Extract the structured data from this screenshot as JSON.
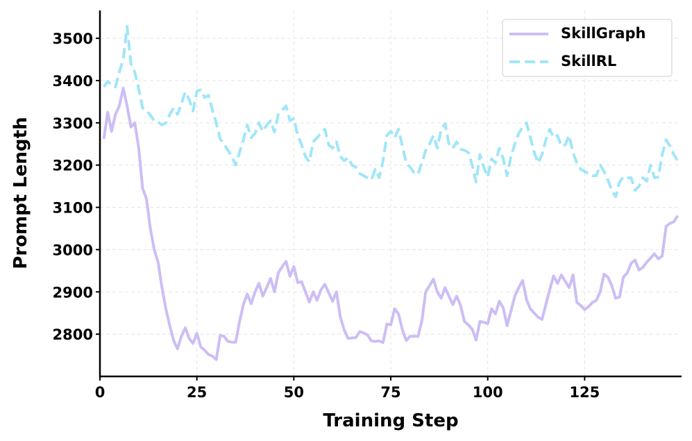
{
  "chart_data": {
    "type": "line",
    "x": [
      1,
      2,
      3,
      4,
      5,
      6,
      7,
      8,
      9,
      10,
      11,
      12,
      13,
      14,
      15,
      16,
      17,
      18,
      19,
      20,
      21,
      22,
      23,
      24,
      25,
      26,
      27,
      28,
      29,
      30,
      31,
      32,
      33,
      34,
      35,
      36,
      37,
      38,
      39,
      40,
      41,
      42,
      43,
      44,
      45,
      46,
      47,
      48,
      49,
      50,
      51,
      52,
      53,
      54,
      55,
      56,
      57,
      58,
      59,
      60,
      61,
      62,
      63,
      64,
      65,
      66,
      67,
      68,
      69,
      70,
      71,
      72,
      73,
      74,
      75,
      76,
      77,
      78,
      79,
      80,
      81,
      82,
      83,
      84,
      85,
      86,
      87,
      88,
      89,
      90,
      91,
      92,
      93,
      94,
      95,
      96,
      97,
      98,
      99,
      100,
      101,
      102,
      103,
      104,
      105,
      106,
      107,
      108,
      109,
      110,
      111,
      112,
      113,
      114,
      115,
      116,
      117,
      118,
      119,
      120,
      121,
      122,
      123,
      124,
      125,
      126,
      127,
      128,
      129,
      130,
      131,
      132,
      133,
      134,
      135,
      136,
      137,
      138,
      139,
      140,
      141,
      142,
      143,
      144,
      145,
      146,
      147,
      148,
      149
    ],
    "series": [
      {
        "name": "SkillGraph",
        "color": "#cdbdf5",
        "dash": false,
        "values": [
          3262,
          3325,
          3280,
          3320,
          3340,
          3382,
          3340,
          3290,
          3300,
          3240,
          3145,
          3120,
          3050,
          3000,
          2970,
          2910,
          2860,
          2820,
          2785,
          2765,
          2795,
          2815,
          2790,
          2778,
          2802,
          2770,
          2762,
          2752,
          2748,
          2740,
          2797,
          2795,
          2783,
          2781,
          2781,
          2830,
          2870,
          2895,
          2872,
          2900,
          2920,
          2890,
          2910,
          2932,
          2900,
          2945,
          2960,
          2972,
          2937,
          2960,
          2922,
          2924,
          2900,
          2876,
          2900,
          2880,
          2905,
          2918,
          2898,
          2878,
          2900,
          2840,
          2810,
          2790,
          2791,
          2792,
          2806,
          2803,
          2798,
          2784,
          2783,
          2784,
          2780,
          2824,
          2822,
          2860,
          2848,
          2810,
          2785,
          2795,
          2795,
          2795,
          2830,
          2900,
          2915,
          2930,
          2900,
          2885,
          2910,
          2890,
          2870,
          2890,
          2868,
          2830,
          2822,
          2812,
          2786,
          2830,
          2828,
          2825,
          2860,
          2848,
          2878,
          2862,
          2820,
          2855,
          2890,
          2910,
          2927,
          2882,
          2860,
          2850,
          2840,
          2835,
          2870,
          2905,
          2938,
          2920,
          2940,
          2925,
          2910,
          2940,
          2875,
          2868,
          2858,
          2865,
          2875,
          2880,
          2900,
          2942,
          2935,
          2915,
          2885,
          2888,
          2935,
          2945,
          2968,
          2975,
          2952,
          2958,
          2970,
          2980,
          2990,
          2978,
          2985,
          3055,
          3062,
          3066,
          3080
        ]
      },
      {
        "name": "SkillRL",
        "color": "#a0e6f8",
        "dash": true,
        "values": [
          3385,
          3398,
          3390,
          3385,
          3420,
          3450,
          3528,
          3440,
          3420,
          3380,
          3335,
          3330,
          3318,
          3305,
          3302,
          3295,
          3300,
          3320,
          3335,
          3320,
          3345,
          3373,
          3355,
          3328,
          3375,
          3378,
          3360,
          3365,
          3330,
          3300,
          3262,
          3250,
          3235,
          3220,
          3200,
          3230,
          3260,
          3295,
          3265,
          3275,
          3300,
          3280,
          3295,
          3305,
          3278,
          3320,
          3330,
          3340,
          3305,
          3310,
          3270,
          3248,
          3220,
          3208,
          3255,
          3265,
          3275,
          3285,
          3248,
          3240,
          3255,
          3220,
          3210,
          3218,
          3200,
          3195,
          3180,
          3175,
          3170,
          3165,
          3190,
          3170,
          3210,
          3270,
          3280,
          3265,
          3285,
          3245,
          3205,
          3195,
          3182,
          3178,
          3205,
          3235,
          3250,
          3270,
          3240,
          3285,
          3298,
          3250,
          3240,
          3255,
          3238,
          3235,
          3230,
          3200,
          3160,
          3225,
          3195,
          3172,
          3215,
          3205,
          3240,
          3215,
          3175,
          3220,
          3250,
          3275,
          3290,
          3300,
          3265,
          3230,
          3205,
          3225,
          3260,
          3285,
          3265,
          3270,
          3245,
          3248,
          3270,
          3230,
          3205,
          3190,
          3185,
          3180,
          3175,
          3175,
          3200,
          3185,
          3165,
          3140,
          3125,
          3160,
          3172,
          3170,
          3170,
          3140,
          3150,
          3170,
          3162,
          3200,
          3170,
          3172,
          3225,
          3260,
          3245,
          3225,
          3210
        ]
      }
    ],
    "x_label": "Training Step",
    "y_label": "Prompt Length",
    "xlim": [
      0,
      150
    ],
    "ylim": [
      2700,
      3566
    ],
    "xticks": [
      0,
      25,
      50,
      75,
      100,
      125
    ],
    "yticks": [
      2800,
      2900,
      3000,
      3100,
      3200,
      3300,
      3400,
      3500
    ],
    "grid": true,
    "legend": "upper right"
  }
}
